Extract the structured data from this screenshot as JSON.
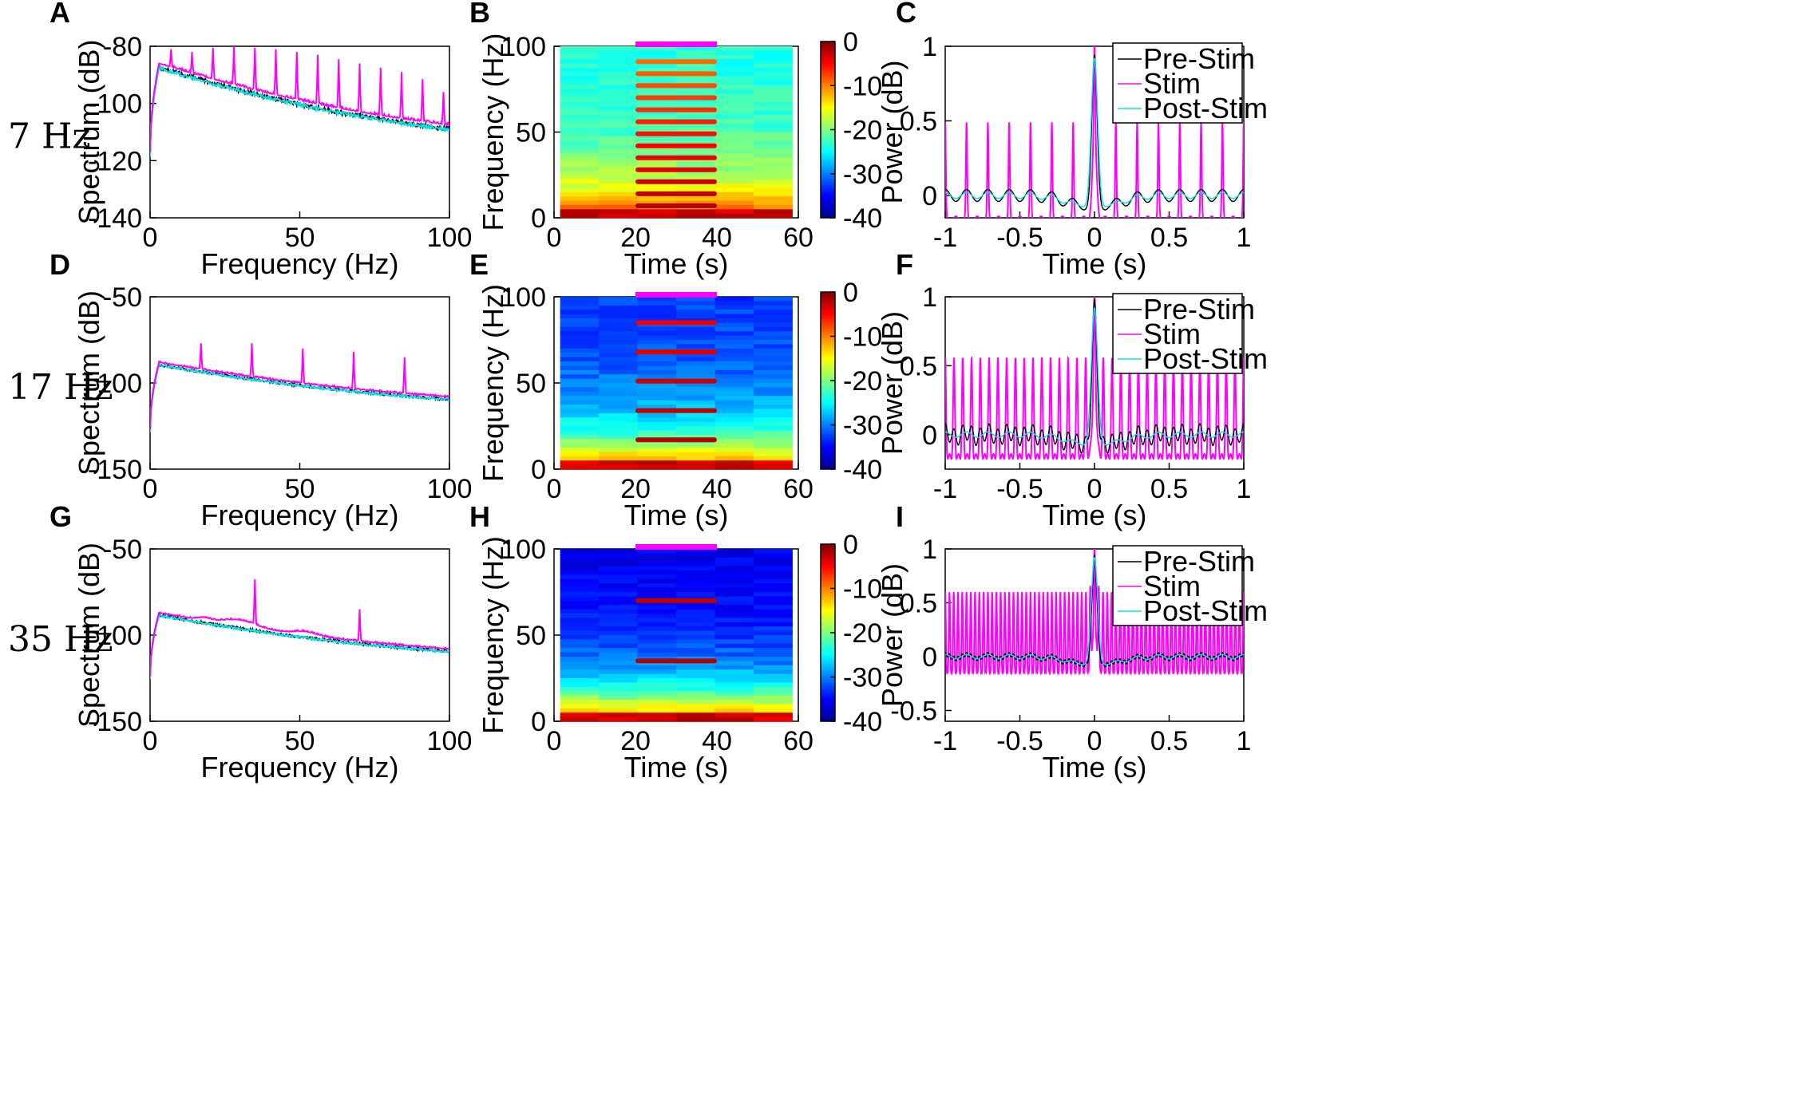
{
  "colors": {
    "pre": "#000000",
    "stim": "#ff00ff",
    "post": "#00e5e5",
    "stim_bar": "#ff00ff"
  },
  "rows": [
    {
      "row_label": "7 Hz",
      "stim_freq": 7
    },
    {
      "row_label": "17 Hz",
      "stim_freq": 17
    },
    {
      "row_label": "35 Hz",
      "stim_freq": 35
    }
  ],
  "chart_data": [
    {
      "panel": "A",
      "type": "line",
      "xlabel": "Frequency (Hz)",
      "ylabel": "Spectrum (dB)",
      "xlim": [
        0,
        100
      ],
      "ylim": [
        -140,
        -80
      ],
      "xticks": [
        0,
        50,
        100
      ],
      "yticks": [
        -140,
        -120,
        -100,
        -80
      ],
      "series": [
        {
          "name": "Pre-Stim",
          "color": "#000000"
        },
        {
          "name": "Stim",
          "color": "#ff00ff"
        },
        {
          "name": "Post-Stim",
          "color": "#00e5e5"
        }
      ],
      "baseline": {
        "start": -118,
        "peak_freq": 3,
        "peak": -87,
        "at100": -108.5
      },
      "stim_peaks": [
        {
          "f": 7,
          "v": -81
        },
        {
          "f": 14,
          "v": -82
        },
        {
          "f": 21,
          "v": -80.5
        },
        {
          "f": 28,
          "v": -80
        },
        {
          "f": 35,
          "v": -80.5
        },
        {
          "f": 42,
          "v": -81
        },
        {
          "f": 49,
          "v": -82
        },
        {
          "f": 56,
          "v": -83
        },
        {
          "f": 63,
          "v": -84.5
        },
        {
          "f": 70,
          "v": -86
        },
        {
          "f": 77,
          "v": -87.5
        },
        {
          "f": 84,
          "v": -89
        },
        {
          "f": 91,
          "v": -91.5
        },
        {
          "f": 98,
          "v": -96
        }
      ]
    },
    {
      "panel": "B",
      "type": "heatmap",
      "xlabel": "Time (s)",
      "ylabel": "Frequency (Hz)",
      "xlim": [
        0,
        60
      ],
      "ylim": [
        0,
        100
      ],
      "xticks": [
        0,
        20,
        40,
        60
      ],
      "yticks": [
        0,
        50,
        100
      ],
      "colorbar": {
        "min": -40,
        "max": 0,
        "ticks": [
          0,
          -10,
          -20,
          -30,
          -40
        ]
      },
      "stim_window": [
        20,
        40
      ],
      "harmonics": [
        7,
        14,
        21,
        28,
        35,
        42,
        49,
        56,
        63,
        70,
        77,
        84,
        91
      ]
    },
    {
      "panel": "C",
      "type": "line",
      "xlabel": "Time (s)",
      "ylabel": "Power (dB)",
      "xlim": [
        -1,
        1
      ],
      "ylim": [
        -0.15,
        1
      ],
      "xticks": [
        -1,
        -0.5,
        0,
        0.5,
        1
      ],
      "yticks": [
        0,
        0.5,
        1
      ],
      "legend": [
        "Pre-Stim",
        "Stim",
        "Post-Stim"
      ],
      "stim_freq": 7,
      "stim_peak_amp": 0.45
    },
    {
      "panel": "D",
      "type": "line",
      "xlabel": "Frequency (Hz)",
      "ylabel": "Spectrum (dB)",
      "xlim": [
        0,
        100
      ],
      "ylim": [
        -150,
        -50
      ],
      "xticks": [
        0,
        50,
        100
      ],
      "yticks": [
        -150,
        -100,
        -50
      ],
      "series": [
        {
          "name": "Pre-Stim",
          "color": "#000000"
        },
        {
          "name": "Stim",
          "color": "#ff00ff"
        },
        {
          "name": "Post-Stim",
          "color": "#00e5e5"
        }
      ],
      "baseline": {
        "start": -128,
        "peak_freq": 3,
        "peak": -89,
        "at100": -109
      },
      "stim_peaks": [
        {
          "f": 17,
          "v": -77
        },
        {
          "f": 34,
          "v": -77
        },
        {
          "f": 51,
          "v": -80
        },
        {
          "f": 68,
          "v": -82
        },
        {
          "f": 85,
          "v": -85
        }
      ]
    },
    {
      "panel": "E",
      "type": "heatmap",
      "xlabel": "Time (s)",
      "ylabel": "Frequency (Hz)",
      "xlim": [
        0,
        60
      ],
      "ylim": [
        0,
        100
      ],
      "xticks": [
        0,
        20,
        40,
        60
      ],
      "yticks": [
        0,
        50,
        100
      ],
      "colorbar": {
        "min": -40,
        "max": 0,
        "ticks": [
          0,
          -10,
          -20,
          -30,
          -40
        ]
      },
      "stim_window": [
        20,
        40
      ],
      "harmonics": [
        17,
        34,
        51,
        68,
        85
      ]
    },
    {
      "panel": "F",
      "type": "line",
      "xlabel": "Time (s)",
      "ylabel": "Power (dB)",
      "xlim": [
        -1,
        1
      ],
      "ylim": [
        -0.25,
        1
      ],
      "xticks": [
        -1,
        -0.5,
        0,
        0.5,
        1
      ],
      "yticks": [
        0,
        0.5,
        1
      ],
      "legend": [
        "Pre-Stim",
        "Stim",
        "Post-Stim"
      ],
      "stim_freq": 17,
      "stim_peak_amp": 0.52
    },
    {
      "panel": "G",
      "type": "line",
      "xlabel": "Frequency (Hz)",
      "ylabel": "Spectrum (dB)",
      "xlim": [
        0,
        100
      ],
      "ylim": [
        -150,
        -50
      ],
      "xticks": [
        0,
        50,
        100
      ],
      "yticks": [
        -150,
        -100,
        -50
      ],
      "series": [
        {
          "name": "Pre-Stim",
          "color": "#000000"
        },
        {
          "name": "Stim",
          "color": "#ff00ff"
        },
        {
          "name": "Post-Stim",
          "color": "#00e5e5"
        }
      ],
      "baseline": {
        "start": -125,
        "peak_freq": 3,
        "peak": -88,
        "at100": -109
      },
      "stim_peaks": [
        {
          "f": 35,
          "v": -70
        },
        {
          "f": 70,
          "v": -85
        }
      ]
    },
    {
      "panel": "H",
      "type": "heatmap",
      "xlabel": "Time (s)",
      "ylabel": "Frequency (Hz)",
      "xlim": [
        0,
        60
      ],
      "ylim": [
        0,
        100
      ],
      "xticks": [
        0,
        20,
        40,
        60
      ],
      "yticks": [
        0,
        50,
        100
      ],
      "colorbar": {
        "min": -40,
        "max": 0,
        "ticks": [
          0,
          -10,
          -20,
          -30,
          -40
        ]
      },
      "stim_window": [
        20,
        40
      ],
      "harmonics": [
        35,
        70
      ]
    },
    {
      "panel": "I",
      "type": "line",
      "xlabel": "Time (s)",
      "ylabel": "Power (dB)",
      "xlim": [
        -1,
        1
      ],
      "ylim": [
        -0.6,
        1
      ],
      "xticks": [
        -1,
        -0.5,
        0,
        0.5,
        1
      ],
      "yticks": [
        -0.5,
        0,
        0.5,
        1
      ],
      "legend": [
        "Pre-Stim",
        "Stim",
        "Post-Stim"
      ],
      "stim_freq": 35,
      "stim_peak_amp": 0.56
    }
  ]
}
